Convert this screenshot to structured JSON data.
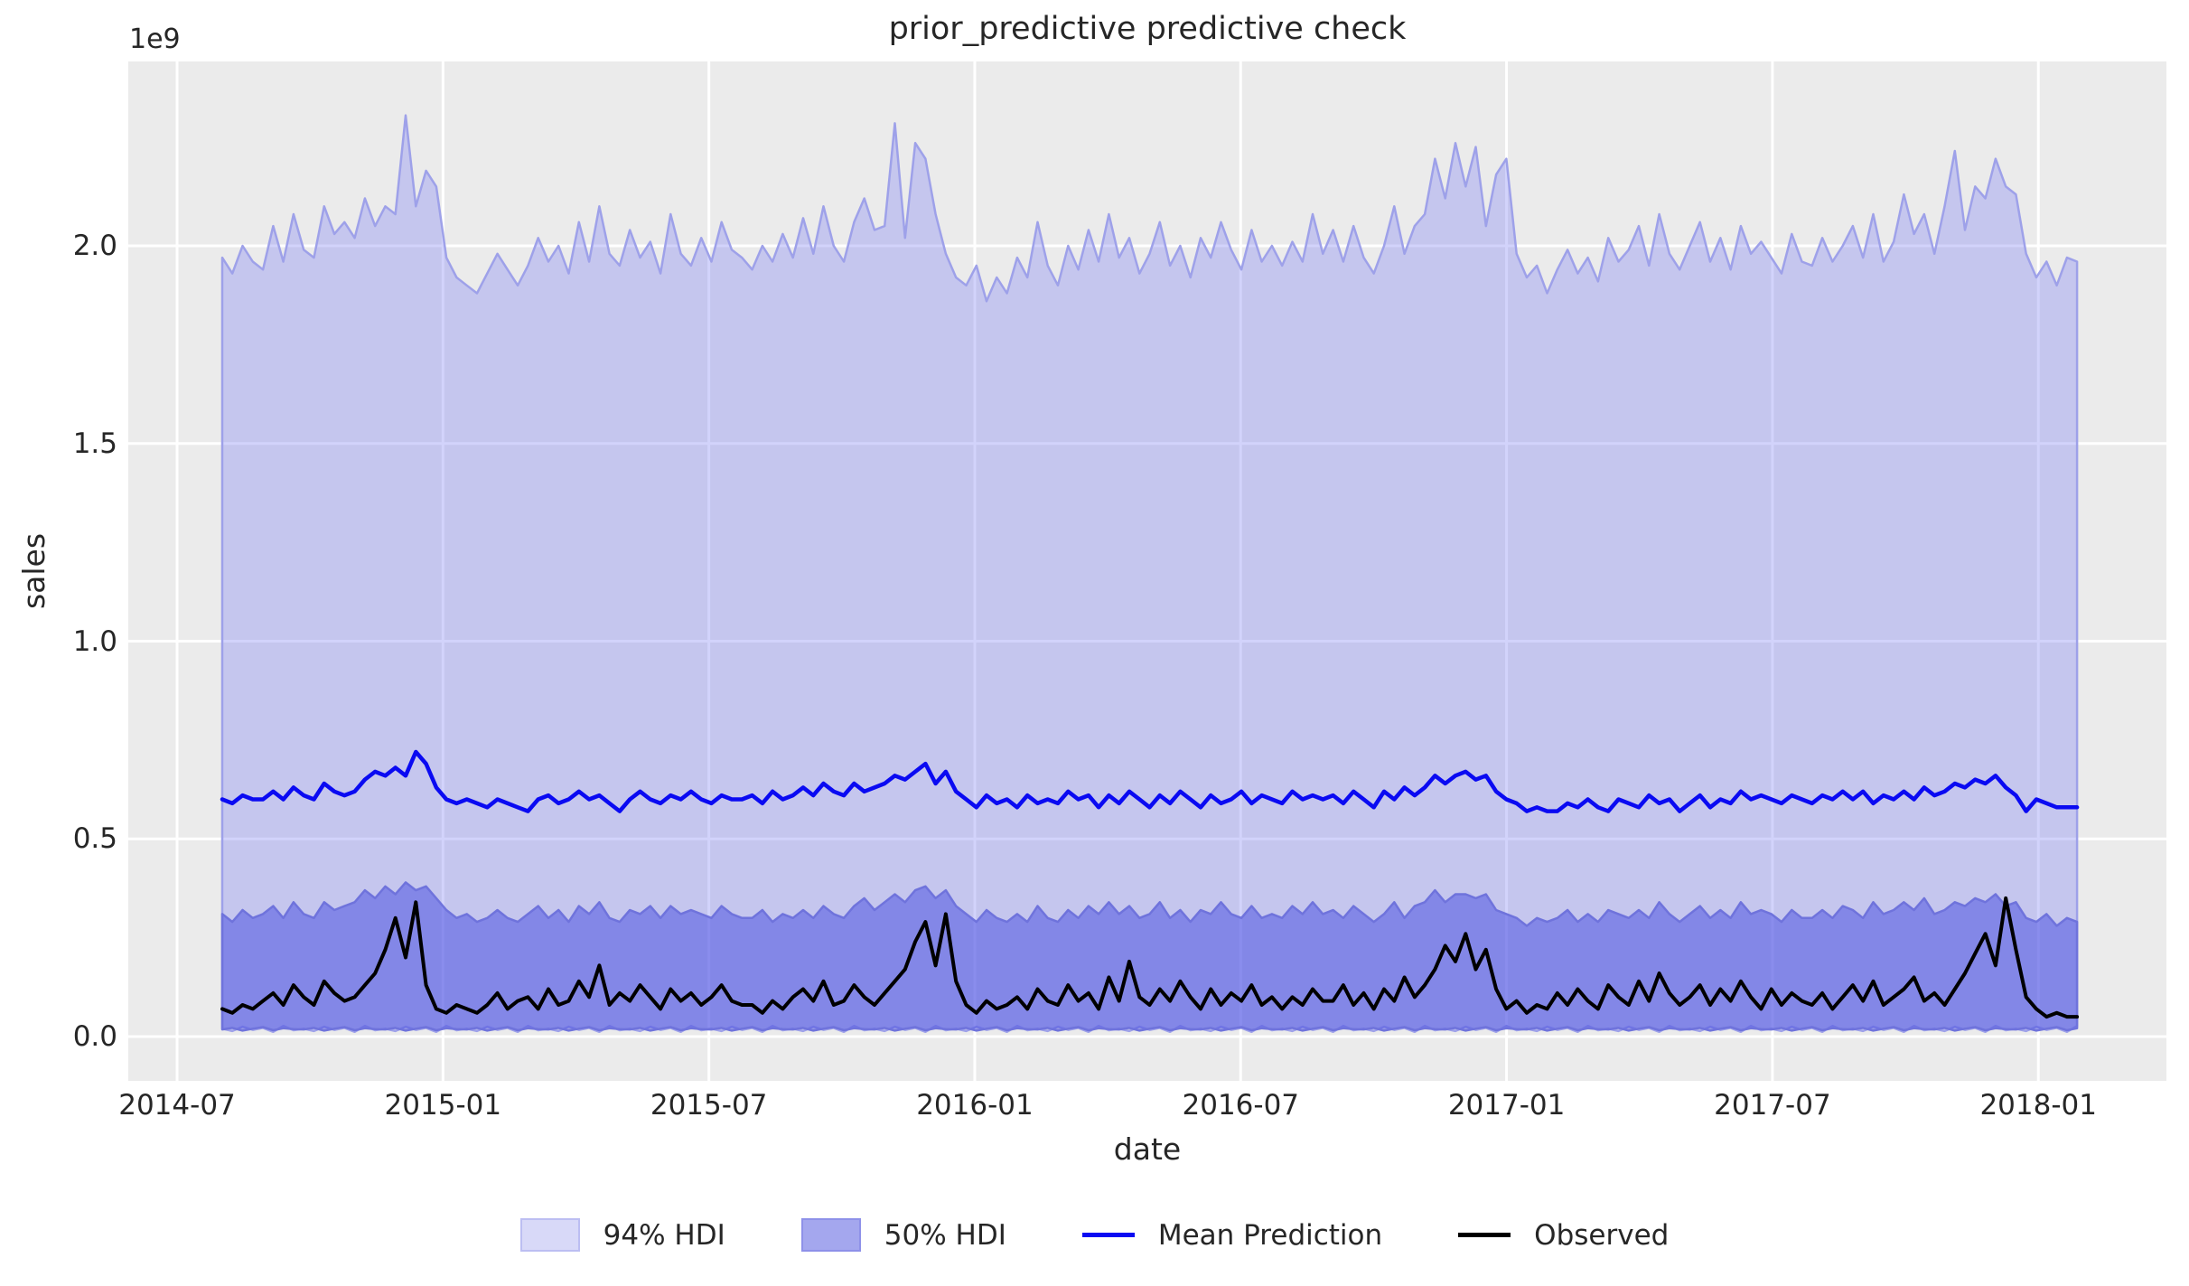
{
  "title": "prior_predictive predictive check",
  "colors": {
    "axes_background": "#ebebeb",
    "grid": "#ffffff",
    "hdi94_fill": "rgba(125,128,244,0.35)",
    "hdi94_edge": "#9ea1e9",
    "hdi50_fill": "rgba(65,72,224,0.5)",
    "hdi50_edge": "#6f73dc",
    "mean_line": "#0a0af2",
    "observed_line": "#000000",
    "text": "#262626",
    "legend94_fill": "#d8d9f8",
    "legend94_edge": "#bcbef2",
    "legend50_fill": "#a4a7ee",
    "legend50_edge": "#8e91e9"
  },
  "legend": {
    "items": [
      {
        "label": "94% HDI",
        "type": "patch"
      },
      {
        "label": "50% HDI",
        "type": "patch"
      },
      {
        "label": "Mean Prediction",
        "type": "line"
      },
      {
        "label": "Observed",
        "type": "line"
      }
    ]
  },
  "chart_data": {
    "type": "area",
    "title": "prior_predictive predictive check",
    "units": "1e9",
    "grid": true,
    "legend_position": "bottom",
    "x_start": "2014-08-02",
    "x_step_days": 7,
    "x_axis": {
      "label": "date",
      "tick_labels": [
        "2014-07",
        "2015-01",
        "2015-07",
        "2016-01",
        "2016-07",
        "2017-01",
        "2017-07",
        "2018-01"
      ],
      "tick_month_offsets": [
        0,
        6,
        12,
        18,
        24,
        30,
        36,
        42
      ]
    },
    "y_axis": {
      "label": "sales",
      "offset_label": "1e9",
      "tick_values": [
        0.0,
        0.5,
        1.0,
        1.5,
        2.0
      ],
      "tick_labels": [
        "0.0",
        "0.5",
        "1.0",
        "1.5",
        "2.0"
      ],
      "range": [
        -0.11,
        2.47
      ]
    },
    "series": {
      "hdi94_upper": [
        1.97,
        1.93,
        2.0,
        1.96,
        1.94,
        2.05,
        1.96,
        2.08,
        1.99,
        1.97,
        2.1,
        2.03,
        2.06,
        2.02,
        2.12,
        2.05,
        2.1,
        2.08,
        2.33,
        2.1,
        2.19,
        2.15,
        1.97,
        1.92,
        1.9,
        1.88,
        1.93,
        1.98,
        1.94,
        1.9,
        1.95,
        2.02,
        1.96,
        2.0,
        1.93,
        2.06,
        1.96,
        2.1,
        1.98,
        1.95,
        2.04,
        1.97,
        2.01,
        1.93,
        2.08,
        1.98,
        1.95,
        2.02,
        1.96,
        2.06,
        1.99,
        1.97,
        1.94,
        2.0,
        1.96,
        2.03,
        1.97,
        2.07,
        1.98,
        2.1,
        2.0,
        1.96,
        2.06,
        2.12,
        2.04,
        2.05,
        2.31,
        2.02,
        2.26,
        2.22,
        2.08,
        1.98,
        1.92,
        1.9,
        1.95,
        1.86,
        1.92,
        1.88,
        1.97,
        1.92,
        2.06,
        1.95,
        1.9,
        2.0,
        1.94,
        2.04,
        1.96,
        2.08,
        1.97,
        2.02,
        1.93,
        1.98,
        2.06,
        1.95,
        2.0,
        1.92,
        2.02,
        1.97,
        2.06,
        1.99,
        1.94,
        2.04,
        1.96,
        2.0,
        1.95,
        2.01,
        1.96,
        2.08,
        1.98,
        2.04,
        1.96,
        2.05,
        1.97,
        1.93,
        2.0,
        2.1,
        1.98,
        2.05,
        2.08,
        2.22,
        2.12,
        2.26,
        2.15,
        2.25,
        2.05,
        2.18,
        2.22,
        1.98,
        1.92,
        1.95,
        1.88,
        1.94,
        1.99,
        1.93,
        1.97,
        1.91,
        2.02,
        1.96,
        1.99,
        2.05,
        1.95,
        2.08,
        1.98,
        1.94,
        2.0,
        2.06,
        1.96,
        2.02,
        1.94,
        2.05,
        1.98,
        2.01,
        1.97,
        1.93,
        2.03,
        1.96,
        1.95,
        2.02,
        1.96,
        2.0,
        2.05,
        1.97,
        2.08,
        1.96,
        2.01,
        2.13,
        2.03,
        2.08,
        1.98,
        2.1,
        2.24,
        2.04,
        2.15,
        2.12,
        2.22,
        2.15,
        2.13,
        1.98,
        1.92,
        1.96,
        1.9,
        1.97,
        1.96
      ],
      "hdi94_lower": [
        0.02,
        0.014,
        0.025,
        0.017,
        0.022,
        0.012,
        0.027,
        0.016,
        0.02,
        0.014,
        0.025,
        0.017,
        0.022,
        0.012,
        0.027,
        0.016,
        0.02,
        0.014,
        0.025,
        0.017,
        0.022,
        0.012,
        0.027,
        0.016,
        0.02,
        0.014,
        0.025,
        0.017,
        0.022,
        0.012,
        0.027,
        0.016,
        0.02,
        0.014,
        0.025,
        0.017,
        0.022,
        0.012,
        0.027,
        0.016,
        0.02,
        0.014,
        0.025,
        0.017,
        0.022,
        0.012,
        0.027,
        0.016,
        0.02,
        0.014,
        0.025,
        0.017,
        0.022,
        0.012,
        0.027,
        0.016,
        0.02,
        0.014,
        0.025,
        0.017,
        0.022,
        0.012,
        0.027,
        0.016,
        0.02,
        0.014,
        0.025,
        0.017,
        0.022,
        0.012,
        0.027,
        0.016,
        0.02,
        0.014,
        0.025,
        0.017,
        0.022,
        0.012,
        0.027,
        0.016,
        0.02,
        0.014,
        0.025,
        0.017,
        0.022,
        0.012,
        0.027,
        0.016,
        0.02,
        0.014,
        0.025,
        0.017,
        0.022,
        0.012,
        0.027,
        0.016,
        0.02,
        0.014,
        0.025,
        0.017,
        0.022,
        0.012,
        0.027,
        0.016,
        0.02,
        0.014,
        0.025,
        0.017,
        0.022,
        0.012,
        0.027,
        0.016,
        0.02,
        0.014,
        0.025,
        0.017,
        0.022,
        0.012,
        0.027,
        0.016,
        0.02,
        0.014,
        0.025,
        0.017,
        0.022,
        0.012,
        0.027,
        0.016,
        0.02,
        0.014,
        0.025,
        0.017,
        0.022,
        0.012,
        0.027,
        0.016,
        0.02,
        0.014,
        0.025,
        0.017,
        0.022,
        0.012,
        0.027,
        0.016,
        0.02,
        0.014,
        0.025,
        0.017,
        0.022,
        0.012,
        0.027,
        0.016,
        0.02,
        0.014,
        0.025,
        0.017,
        0.022,
        0.012,
        0.027,
        0.016,
        0.02,
        0.014,
        0.025,
        0.017,
        0.022,
        0.012,
        0.027,
        0.016,
        0.02,
        0.014,
        0.025,
        0.017,
        0.022,
        0.012,
        0.027,
        0.016,
        0.02,
        0.014,
        0.025,
        0.017,
        0.022,
        0.012,
        0.027
      ],
      "hdi50_upper": [
        0.31,
        0.29,
        0.32,
        0.3,
        0.31,
        0.33,
        0.3,
        0.34,
        0.31,
        0.3,
        0.34,
        0.32,
        0.33,
        0.34,
        0.37,
        0.35,
        0.38,
        0.36,
        0.39,
        0.37,
        0.38,
        0.35,
        0.32,
        0.3,
        0.31,
        0.29,
        0.3,
        0.32,
        0.3,
        0.29,
        0.31,
        0.33,
        0.3,
        0.32,
        0.29,
        0.33,
        0.31,
        0.34,
        0.3,
        0.29,
        0.32,
        0.31,
        0.33,
        0.3,
        0.33,
        0.31,
        0.32,
        0.31,
        0.3,
        0.33,
        0.31,
        0.3,
        0.3,
        0.32,
        0.29,
        0.31,
        0.3,
        0.32,
        0.3,
        0.33,
        0.31,
        0.3,
        0.33,
        0.35,
        0.32,
        0.34,
        0.36,
        0.34,
        0.37,
        0.38,
        0.35,
        0.37,
        0.33,
        0.31,
        0.29,
        0.32,
        0.3,
        0.29,
        0.31,
        0.29,
        0.33,
        0.3,
        0.29,
        0.32,
        0.3,
        0.33,
        0.31,
        0.34,
        0.31,
        0.33,
        0.3,
        0.31,
        0.34,
        0.3,
        0.32,
        0.29,
        0.32,
        0.31,
        0.34,
        0.31,
        0.3,
        0.33,
        0.3,
        0.31,
        0.3,
        0.33,
        0.31,
        0.34,
        0.31,
        0.32,
        0.3,
        0.33,
        0.31,
        0.29,
        0.31,
        0.34,
        0.3,
        0.33,
        0.34,
        0.37,
        0.34,
        0.36,
        0.36,
        0.35,
        0.36,
        0.32,
        0.31,
        0.3,
        0.28,
        0.3,
        0.29,
        0.3,
        0.32,
        0.29,
        0.31,
        0.29,
        0.32,
        0.31,
        0.3,
        0.32,
        0.3,
        0.34,
        0.31,
        0.29,
        0.31,
        0.33,
        0.3,
        0.32,
        0.3,
        0.34,
        0.31,
        0.32,
        0.31,
        0.29,
        0.32,
        0.3,
        0.3,
        0.32,
        0.3,
        0.33,
        0.32,
        0.3,
        0.34,
        0.31,
        0.32,
        0.34,
        0.32,
        0.35,
        0.31,
        0.32,
        0.34,
        0.33,
        0.35,
        0.34,
        0.36,
        0.33,
        0.34,
        0.3,
        0.29,
        0.31,
        0.28,
        0.3,
        0.29
      ],
      "hdi50_lower": [
        0.018,
        0.022,
        0.015,
        0.02,
        0.024,
        0.016,
        0.021,
        0.019,
        0.018,
        0.022,
        0.015,
        0.02,
        0.024,
        0.016,
        0.021,
        0.019,
        0.018,
        0.022,
        0.015,
        0.02,
        0.024,
        0.016,
        0.021,
        0.019,
        0.018,
        0.022,
        0.015,
        0.02,
        0.024,
        0.016,
        0.021,
        0.019,
        0.018,
        0.022,
        0.015,
        0.02,
        0.024,
        0.016,
        0.021,
        0.019,
        0.018,
        0.022,
        0.015,
        0.02,
        0.024,
        0.016,
        0.021,
        0.019,
        0.018,
        0.022,
        0.015,
        0.02,
        0.024,
        0.016,
        0.021,
        0.019,
        0.018,
        0.022,
        0.015,
        0.02,
        0.024,
        0.016,
        0.021,
        0.019,
        0.018,
        0.022,
        0.015,
        0.02,
        0.024,
        0.016,
        0.021,
        0.019,
        0.018,
        0.022,
        0.015,
        0.02,
        0.024,
        0.016,
        0.021,
        0.019,
        0.018,
        0.022,
        0.015,
        0.02,
        0.024,
        0.016,
        0.021,
        0.019,
        0.018,
        0.022,
        0.015,
        0.02,
        0.024,
        0.016,
        0.021,
        0.019,
        0.018,
        0.022,
        0.015,
        0.02,
        0.024,
        0.016,
        0.021,
        0.019,
        0.018,
        0.022,
        0.015,
        0.02,
        0.024,
        0.016,
        0.021,
        0.019,
        0.018,
        0.022,
        0.015,
        0.02,
        0.024,
        0.016,
        0.021,
        0.019,
        0.018,
        0.022,
        0.015,
        0.02,
        0.024,
        0.016,
        0.021,
        0.019,
        0.018,
        0.022,
        0.015,
        0.02,
        0.024,
        0.016,
        0.021,
        0.019,
        0.018,
        0.022,
        0.015,
        0.02,
        0.024,
        0.016,
        0.021,
        0.019,
        0.018,
        0.022,
        0.015,
        0.02,
        0.024,
        0.016,
        0.021,
        0.019,
        0.018,
        0.022,
        0.015,
        0.02,
        0.024,
        0.016,
        0.021,
        0.019,
        0.018,
        0.022,
        0.015,
        0.02,
        0.024,
        0.016,
        0.021,
        0.019,
        0.018,
        0.022,
        0.015,
        0.02,
        0.024,
        0.016,
        0.021,
        0.019,
        0.018,
        0.022,
        0.015,
        0.02,
        0.024,
        0.016,
        0.021
      ],
      "mean_prediction": [
        0.6,
        0.59,
        0.61,
        0.6,
        0.6,
        0.62,
        0.6,
        0.63,
        0.61,
        0.6,
        0.64,
        0.62,
        0.61,
        0.62,
        0.65,
        0.67,
        0.66,
        0.68,
        0.66,
        0.72,
        0.69,
        0.63,
        0.6,
        0.59,
        0.6,
        0.59,
        0.58,
        0.6,
        0.59,
        0.58,
        0.57,
        0.6,
        0.61,
        0.59,
        0.6,
        0.62,
        0.6,
        0.61,
        0.59,
        0.57,
        0.6,
        0.62,
        0.6,
        0.59,
        0.61,
        0.6,
        0.62,
        0.6,
        0.59,
        0.61,
        0.6,
        0.6,
        0.61,
        0.59,
        0.62,
        0.6,
        0.61,
        0.63,
        0.61,
        0.64,
        0.62,
        0.61,
        0.64,
        0.62,
        0.63,
        0.64,
        0.66,
        0.65,
        0.67,
        0.69,
        0.64,
        0.67,
        0.62,
        0.6,
        0.58,
        0.61,
        0.59,
        0.6,
        0.58,
        0.61,
        0.59,
        0.6,
        0.59,
        0.62,
        0.6,
        0.61,
        0.58,
        0.61,
        0.59,
        0.62,
        0.6,
        0.58,
        0.61,
        0.59,
        0.62,
        0.6,
        0.58,
        0.61,
        0.59,
        0.6,
        0.62,
        0.59,
        0.61,
        0.6,
        0.59,
        0.62,
        0.6,
        0.61,
        0.6,
        0.61,
        0.59,
        0.62,
        0.6,
        0.58,
        0.62,
        0.6,
        0.63,
        0.61,
        0.63,
        0.66,
        0.64,
        0.66,
        0.67,
        0.65,
        0.66,
        0.62,
        0.6,
        0.59,
        0.57,
        0.58,
        0.57,
        0.57,
        0.59,
        0.58,
        0.6,
        0.58,
        0.57,
        0.6,
        0.59,
        0.58,
        0.61,
        0.59,
        0.6,
        0.57,
        0.59,
        0.61,
        0.58,
        0.6,
        0.59,
        0.62,
        0.6,
        0.61,
        0.6,
        0.59,
        0.61,
        0.6,
        0.59,
        0.61,
        0.6,
        0.62,
        0.6,
        0.62,
        0.59,
        0.61,
        0.6,
        0.62,
        0.6,
        0.63,
        0.61,
        0.62,
        0.64,
        0.63,
        0.65,
        0.64,
        0.66,
        0.63,
        0.61,
        0.57,
        0.6,
        0.59,
        0.58,
        0.58,
        0.58
      ],
      "observed": [
        0.07,
        0.06,
        0.08,
        0.07,
        0.09,
        0.11,
        0.08,
        0.13,
        0.1,
        0.08,
        0.14,
        0.11,
        0.09,
        0.1,
        0.13,
        0.16,
        0.22,
        0.3,
        0.2,
        0.34,
        0.13,
        0.07,
        0.06,
        0.08,
        0.07,
        0.06,
        0.08,
        0.11,
        0.07,
        0.09,
        0.1,
        0.07,
        0.12,
        0.08,
        0.09,
        0.14,
        0.1,
        0.18,
        0.08,
        0.11,
        0.09,
        0.13,
        0.1,
        0.07,
        0.12,
        0.09,
        0.11,
        0.08,
        0.1,
        0.13,
        0.09,
        0.08,
        0.08,
        0.06,
        0.09,
        0.07,
        0.1,
        0.12,
        0.09,
        0.14,
        0.08,
        0.09,
        0.13,
        0.1,
        0.08,
        0.11,
        0.14,
        0.17,
        0.24,
        0.29,
        0.18,
        0.31,
        0.14,
        0.08,
        0.06,
        0.09,
        0.07,
        0.08,
        0.1,
        0.07,
        0.12,
        0.09,
        0.08,
        0.13,
        0.09,
        0.11,
        0.07,
        0.15,
        0.09,
        0.19,
        0.1,
        0.08,
        0.12,
        0.09,
        0.14,
        0.1,
        0.07,
        0.12,
        0.08,
        0.11,
        0.09,
        0.13,
        0.08,
        0.1,
        0.07,
        0.1,
        0.08,
        0.12,
        0.09,
        0.09,
        0.13,
        0.08,
        0.11,
        0.07,
        0.12,
        0.09,
        0.15,
        0.1,
        0.13,
        0.17,
        0.23,
        0.19,
        0.26,
        0.17,
        0.22,
        0.12,
        0.07,
        0.09,
        0.06,
        0.08,
        0.07,
        0.11,
        0.08,
        0.12,
        0.09,
        0.07,
        0.13,
        0.1,
        0.08,
        0.14,
        0.09,
        0.16,
        0.11,
        0.08,
        0.1,
        0.13,
        0.08,
        0.12,
        0.09,
        0.14,
        0.1,
        0.07,
        0.12,
        0.08,
        0.11,
        0.09,
        0.08,
        0.11,
        0.07,
        0.1,
        0.13,
        0.09,
        0.14,
        0.08,
        0.1,
        0.12,
        0.15,
        0.09,
        0.11,
        0.08,
        0.12,
        0.16,
        0.21,
        0.26,
        0.18,
        0.35,
        0.22,
        0.1,
        0.07,
        0.05,
        0.06,
        0.05,
        0.05
      ]
    }
  }
}
